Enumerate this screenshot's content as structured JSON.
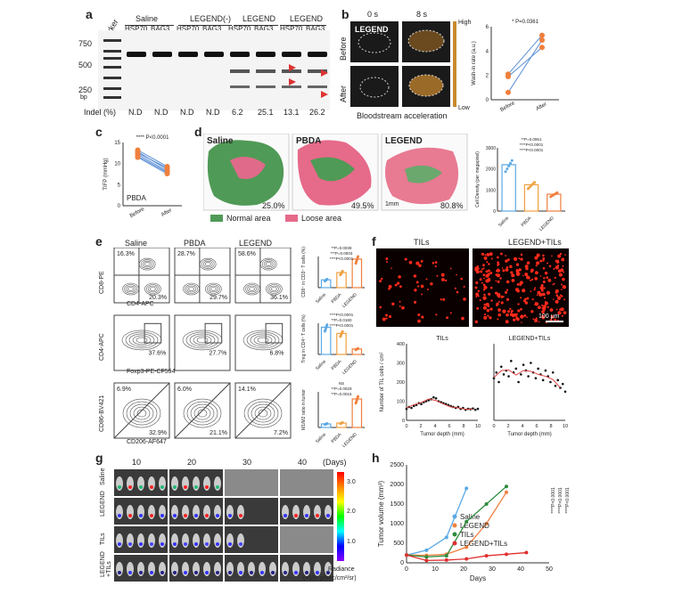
{
  "panel_letters": [
    "a",
    "b",
    "c",
    "d",
    "e",
    "f",
    "g",
    "h"
  ],
  "panel_a": {
    "top_labels": [
      "Saline",
      "LEGEND(-)",
      "LEGEND",
      "LEGEND"
    ],
    "marker_label": "Marker",
    "lanes": [
      "HSP70",
      "BAG3",
      "HSP70",
      "BAG3",
      "HSP70",
      "BAG3",
      "HSP70",
      "BAG3"
    ],
    "bp_ticks": [
      "750",
      "500",
      "250"
    ],
    "bp_unit": "bp",
    "indel_label": "Indel (%)",
    "indel_values": [
      "N.D",
      "N.D",
      "N.D",
      "N.D",
      "6.2",
      "25.1",
      "13.1",
      "26.2"
    ]
  },
  "panel_b": {
    "time0": "0 s",
    "time8": "8 s",
    "row_before": "Before",
    "row_after": "After",
    "legend_tag": "LEGEND",
    "scale_high": "High",
    "scale_low": "Low",
    "caption": "Bloodstream acceleration"
  },
  "chart_data": [
    {
      "id": "b",
      "type": "scatter",
      "title": "",
      "ylabel": "Wash-in rate (a.u.)",
      "categories": [
        "Before",
        "After"
      ],
      "ylim": [
        0,
        6
      ],
      "yticks": [
        "0",
        "2",
        "4",
        "6"
      ],
      "annotation": "* P=0.0361",
      "pairs": [
        [
          2.1,
          5.3
        ],
        [
          1.9,
          4.3
        ],
        [
          0.6,
          4.9
        ]
      ]
    },
    {
      "id": "c",
      "type": "scatter",
      "ylabel": "TIFP (mmHg)",
      "categories": [
        "Before",
        "After"
      ],
      "ylim": [
        0,
        15
      ],
      "yticks": [
        "0",
        "5",
        "10",
        "15"
      ],
      "annotation": "**** P<0.0001",
      "label": "PBDA",
      "pairs": [
        [
          13.2,
          9.3
        ],
        [
          12.8,
          8.6
        ],
        [
          12.2,
          8.2
        ],
        [
          11.8,
          7.9
        ],
        [
          11.5,
          7.6
        ],
        [
          12.5,
          9.0
        ]
      ]
    },
    {
      "id": "d",
      "type": "bar",
      "ylabel": "Cell Density (per megapixel)",
      "categories": [
        "Saline",
        "PBDA",
        "LEGEND"
      ],
      "values": [
        2200,
        1250,
        800
      ],
      "ylim": [
        0,
        3000
      ],
      "yticks": [
        "0",
        "1000",
        "2000",
        "3000"
      ],
      "annotations": [
        "****P<0.0001",
        "****P<0.0001",
        "**P=0.0061"
      ]
    },
    {
      "id": "e1",
      "type": "bar",
      "ylabel": "CD8⁺ in CD3⁺ T cells (%)",
      "categories": [
        "Saline",
        "PBDA",
        "LEGEND"
      ],
      "values": [
        15,
        29,
        55
      ],
      "ylim": [
        0,
        60
      ],
      "annotations": [
        "****P<0.0001",
        "***P=0.0003",
        "**P=0.0038"
      ]
    },
    {
      "id": "e2",
      "type": "bar",
      "ylabel": "Treg in CD4⁺ T cells (%)",
      "categories": [
        "Saline",
        "PBDA",
        "LEGEND"
      ],
      "values": [
        35,
        27,
        7
      ],
      "ylim": [
        0,
        40
      ],
      "annotations": [
        "****P<0.0001",
        "**P=0.0180",
        "****P<0.0001"
      ]
    },
    {
      "id": "e3",
      "type": "bar",
      "ylabel": "M1/M2 ratio in tumor",
      "categories": [
        "Saline",
        "PBDA",
        "LEGEND"
      ],
      "values": [
        0.2,
        0.25,
        1.6
      ],
      "ylim": [
        0,
        2
      ],
      "annotations": [
        "**P=0.0015",
        "**P=0.0029",
        "NS"
      ]
    },
    {
      "id": "f1",
      "type": "scatter",
      "title": "TILs",
      "ylabel": "Number of TIL cells / cm²",
      "xlabel": "Tumor depth (mm)",
      "xlim": [
        0,
        10
      ],
      "ylim": [
        0,
        400
      ],
      "xticks": [
        "0",
        "2",
        "4",
        "6",
        "8",
        "10"
      ],
      "yticks": [
        "0",
        "100",
        "200",
        "300",
        "400"
      ],
      "y": [
        60,
        70,
        65,
        75,
        80,
        90,
        85,
        95,
        100,
        105,
        110,
        120,
        115,
        100,
        95,
        90,
        85,
        80,
        75,
        70,
        65,
        70,
        60,
        65,
        55,
        60,
        58,
        62,
        55,
        60
      ]
    },
    {
      "id": "f2",
      "type": "scatter",
      "title": "LEGEND+TILs",
      "xlabel": "Tumor depth (mm)",
      "xlim": [
        0,
        10
      ],
      "ylim": [
        0,
        400
      ],
      "xticks": [
        "0",
        "2",
        "4",
        "6",
        "8",
        "10"
      ],
      "y": [
        220,
        250,
        200,
        280,
        240,
        260,
        230,
        310,
        250,
        270,
        200,
        240,
        290,
        260,
        230,
        300,
        250,
        220,
        270,
        240,
        210,
        260,
        230,
        200,
        250,
        180,
        210,
        170,
        190,
        150
      ]
    },
    {
      "id": "h",
      "type": "line",
      "xlabel": "Days",
      "ylabel": "Tumor volume (mm³)",
      "xlim": [
        0,
        50
      ],
      "ylim": [
        0,
        2500
      ],
      "xticks": [
        "0",
        "10",
        "20",
        "30",
        "40",
        "50"
      ],
      "yticks": [
        "0",
        "500",
        "1000",
        "1500",
        "2000",
        "2500"
      ],
      "series": [
        {
          "name": "Saline",
          "color": "#5aa9e6",
          "x": [
            0,
            7,
            14,
            21
          ],
          "y": [
            200,
            320,
            650,
            1900
          ]
        },
        {
          "name": "LEGEND",
          "color": "#f07f3c",
          "x": [
            0,
            7,
            14,
            21,
            28,
            35
          ],
          "y": [
            200,
            190,
            220,
            400,
            1000,
            1800
          ]
        },
        {
          "name": "TILs",
          "color": "#2e8b3e",
          "x": [
            0,
            7,
            14,
            21,
            28,
            35
          ],
          "y": [
            200,
            150,
            180,
            1050,
            1500,
            1950
          ]
        },
        {
          "name": "LEGEND+TILs",
          "color": "#e03030",
          "x": [
            0,
            7,
            14,
            21,
            28,
            35,
            42
          ],
          "y": [
            200,
            60,
            70,
            100,
            180,
            220,
            260
          ]
        }
      ],
      "annotations": [
        "****P<0.0001",
        "****P<0.0001",
        "****P<0.0001"
      ]
    }
  ],
  "panel_d": {
    "labels": [
      "Saline",
      "PBDA",
      "LEGEND"
    ],
    "percents": [
      "25.0%",
      "49.5%",
      "80.8%"
    ],
    "legend_normal": "Normal area",
    "legend_loose": "Loose area",
    "scale": "1mm"
  },
  "panel_e": {
    "cols": [
      "Saline",
      "PBDA",
      "LEGEND"
    ],
    "row1_q_tl": [
      "16.3%",
      "28.7%",
      "58.6%"
    ],
    "row1_q_br": [
      "20.3%",
      "29.7%",
      "36.1%"
    ],
    "row2_q": [
      "37.6%",
      "27.7%",
      "6.8%"
    ],
    "row3_q_tl": [
      "6.9%",
      "6.0%",
      "14.1%"
    ],
    "row3_q_br": [
      "32.9%",
      "21.1%",
      "7.2%"
    ],
    "y_axes": [
      "CD8-PE",
      "CD4-APC",
      "CD86-BV421"
    ],
    "x_axes": [
      "CD4-APC",
      "Foxp3-PE-CF594",
      "CD206-AF647"
    ]
  },
  "panel_f": {
    "img_left": "TILs",
    "img_right": "LEGEND+TILs",
    "scale": "100 μm"
  },
  "panel_g": {
    "days": [
      "10",
      "20",
      "30",
      "40"
    ],
    "unit": "(Days)",
    "rows": [
      "Saline",
      "LEGEND",
      "TILs",
      "LEGEND +TILs"
    ],
    "scale_ticks": [
      "3.0",
      "2.0",
      "1.0"
    ],
    "scale_title": "Radiance",
    "scale_unit": "(×10⁸ p/sec/cm²/sr)"
  }
}
